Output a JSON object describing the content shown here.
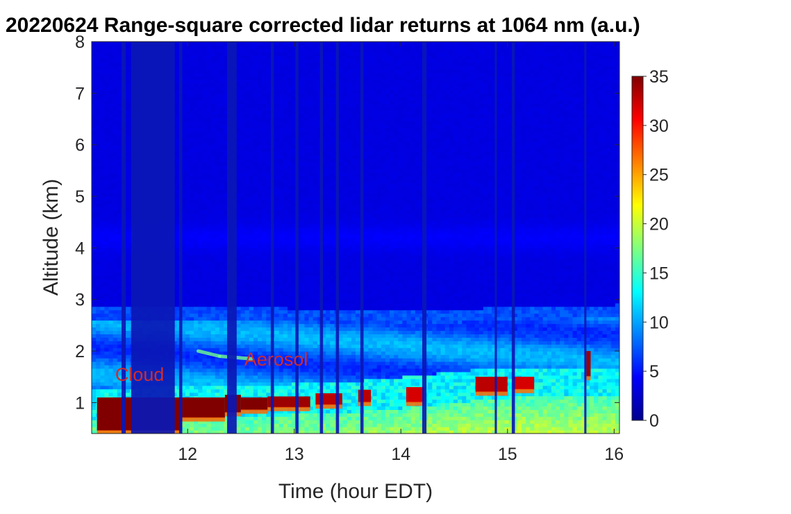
{
  "chart_data": {
    "type": "heatmap",
    "title": "20220624  Range-square corrected lidar returns at 1064 nm (a.u.)",
    "xlabel": "Time (hour EDT)",
    "ylabel": "Altitude (km)",
    "xlim": [
      11.1,
      16.05
    ],
    "ylim": [
      0.4,
      8
    ],
    "xticks": [
      12,
      13,
      14,
      15,
      16
    ],
    "yticks": [
      1,
      2,
      3,
      4,
      5,
      6,
      7,
      8
    ],
    "colorbar": {
      "colormap": "jet",
      "range": [
        0,
        35
      ],
      "ticks": [
        0,
        5,
        10,
        15,
        20,
        25,
        30,
        35
      ]
    },
    "annotations": [
      {
        "text": "Cloud",
        "x": 11.55,
        "y": 1.42,
        "color": "#d42a2a"
      },
      {
        "text": "Aerosol",
        "x": 12.83,
        "y": 1.72,
        "color": "#d42a2a"
      }
    ],
    "dark_gaps": [
      {
        "x0": 11.38,
        "x1": 11.42
      },
      {
        "x0": 11.47,
        "x1": 11.88
      },
      {
        "x0": 11.92,
        "x1": 11.95
      },
      {
        "x0": 12.37,
        "x1": 12.46
      },
      {
        "x0": 12.78,
        "x1": 12.81
      },
      {
        "x0": 13.01,
        "x1": 13.04
      },
      {
        "x0": 13.24,
        "x1": 13.27
      },
      {
        "x0": 13.39,
        "x1": 13.42
      },
      {
        "x0": 13.62,
        "x1": 13.65
      },
      {
        "x0": 14.2,
        "x1": 14.24
      },
      {
        "x0": 14.88,
        "x1": 14.9
      },
      {
        "x0": 15.04,
        "x1": 15.07
      },
      {
        "x0": 15.72,
        "x1": 15.74
      }
    ],
    "aerosol_layer_top_km": [
      {
        "t": 11.1,
        "z": 2.7
      },
      {
        "t": 12.0,
        "z": 2.72
      },
      {
        "t": 13.0,
        "z": 2.68
      },
      {
        "t": 14.0,
        "z": 2.62
      },
      {
        "t": 15.0,
        "z": 2.7
      },
      {
        "t": 16.0,
        "z": 2.75
      }
    ],
    "boundary_layer_top_km": [
      {
        "t": 11.1,
        "z": 1.0
      },
      {
        "t": 11.5,
        "z": 1.05
      },
      {
        "t": 12.0,
        "z": 1.1
      },
      {
        "t": 12.5,
        "z": 1.05
      },
      {
        "t": 13.0,
        "z": 1.12
      },
      {
        "t": 13.5,
        "z": 1.15
      },
      {
        "t": 14.0,
        "z": 1.25
      },
      {
        "t": 14.5,
        "z": 1.35
      },
      {
        "t": 15.0,
        "z": 1.45
      },
      {
        "t": 15.5,
        "z": 1.45
      },
      {
        "t": 16.0,
        "z": 1.45
      }
    ],
    "cloud_cells": [
      {
        "t0": 11.15,
        "t1": 11.95,
        "zb": 0.45,
        "zt": 1.1,
        "v": 35
      },
      {
        "t0": 11.95,
        "t1": 12.35,
        "zb": 0.7,
        "zt": 1.1,
        "v": 35
      },
      {
        "t0": 12.35,
        "t1": 12.5,
        "zb": 0.8,
        "zt": 1.15,
        "v": 35
      },
      {
        "t0": 12.5,
        "t1": 12.75,
        "zb": 0.85,
        "zt": 1.1,
        "v": 35
      },
      {
        "t0": 12.75,
        "t1": 13.15,
        "zb": 0.9,
        "zt": 1.12,
        "v": 34
      },
      {
        "t0": 13.2,
        "t1": 13.45,
        "zb": 0.95,
        "zt": 1.18,
        "v": 33
      },
      {
        "t0": 13.6,
        "t1": 13.72,
        "zb": 1.0,
        "zt": 1.25,
        "v": 33
      },
      {
        "t0": 14.05,
        "t1": 14.22,
        "zb": 1.0,
        "zt": 1.3,
        "v": 32
      },
      {
        "t0": 14.7,
        "t1": 15.0,
        "zb": 1.2,
        "zt": 1.5,
        "v": 33
      },
      {
        "t0": 15.05,
        "t1": 15.25,
        "zb": 1.25,
        "zt": 1.5,
        "v": 32
      },
      {
        "t0": 15.74,
        "t1": 15.78,
        "zb": 1.5,
        "zt": 2.0,
        "v": 34
      }
    ],
    "elevated_aerosol_layer": [
      {
        "t": 12.1,
        "z": 2.0
      },
      {
        "t": 12.3,
        "z": 1.9
      },
      {
        "t": 12.6,
        "z": 1.85
      }
    ]
  }
}
